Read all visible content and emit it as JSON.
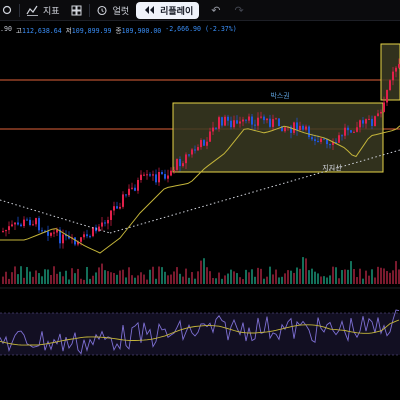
{
  "toolbar": {
    "indicators_label": "지표",
    "alert_label": "얼럿",
    "replay_label": "리플레이"
  },
  "ohlc": {
    "open_value": ".90",
    "high_label": "고",
    "high_value": "112,638.64",
    "low_label": "저",
    "low_value": "109,899.99",
    "close_label": "종",
    "close_value": "109,900.00",
    "change_value": "-2,666.90 (-2.37%)"
  },
  "annotations": {
    "box_label": "박스권",
    "support_label": "지지선"
  },
  "colors": {
    "up": "#e2204a",
    "down": "#1e56e0",
    "box_border": "#e6d547",
    "box_fill": "#3a3a22",
    "hline": "#e0623a",
    "ma": "#c4b53a",
    "rsi": "#7e70d4",
    "rsi_ma": "#c4b53a"
  }
}
